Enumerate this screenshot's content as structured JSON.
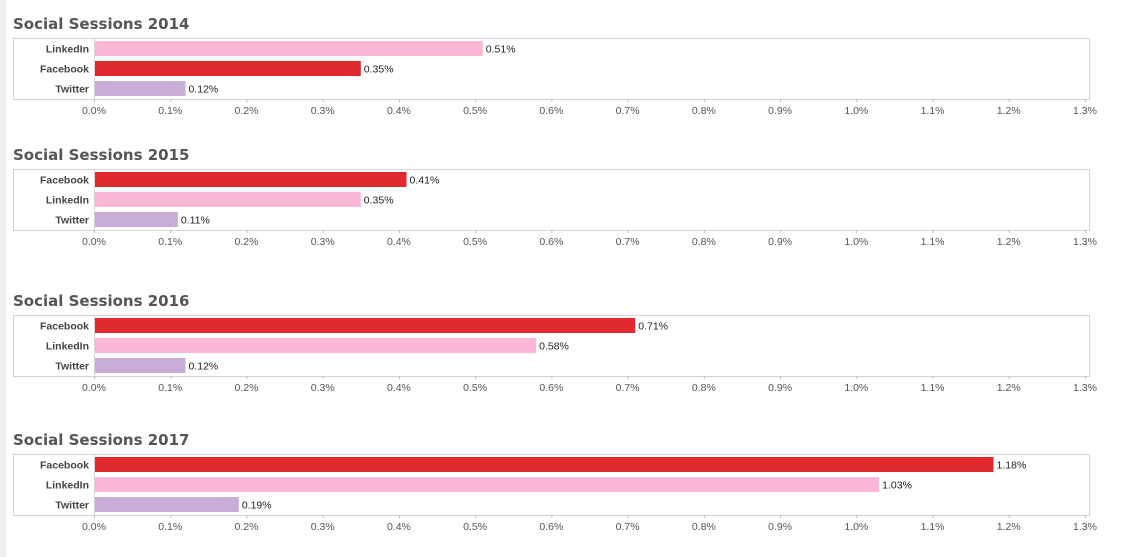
{
  "colors": {
    "Facebook": "#e02a2e",
    "LinkedIn": "#fbb8d6",
    "Twitter": "#c8aed6"
  },
  "chart_data": [
    {
      "type": "bar",
      "orientation": "horizontal",
      "title": "Social Sessions 2014",
      "categories": [
        "LinkedIn",
        "Facebook",
        "Twitter"
      ],
      "values": [
        0.51,
        0.35,
        0.12
      ],
      "value_labels": [
        "0.51%",
        "0.35%",
        "0.12%"
      ],
      "xlim": [
        0,
        1.3
      ],
      "xticks": [
        "0.0%",
        "0.1%",
        "0.2%",
        "0.3%",
        "0.4%",
        "0.5%",
        "0.6%",
        "0.7%",
        "0.8%",
        "0.9%",
        "1.0%",
        "1.1%",
        "1.2%",
        "1.3%"
      ],
      "grid": false
    },
    {
      "type": "bar",
      "orientation": "horizontal",
      "title": "Social Sessions 2015",
      "categories": [
        "Facebook",
        "LinkedIn",
        "Twitter"
      ],
      "values": [
        0.41,
        0.35,
        0.11
      ],
      "value_labels": [
        "0.41%",
        "0.35%",
        "0.11%"
      ],
      "xlim": [
        0,
        1.3
      ],
      "xticks": [
        "0.0%",
        "0.1%",
        "0.2%",
        "0.3%",
        "0.4%",
        "0.5%",
        "0.6%",
        "0.7%",
        "0.8%",
        "0.9%",
        "1.0%",
        "1.1%",
        "1.2%",
        "1.3%"
      ],
      "grid": false
    },
    {
      "type": "bar",
      "orientation": "horizontal",
      "title": "Social Sessions 2016",
      "categories": [
        "Facebook",
        "LinkedIn",
        "Twitter"
      ],
      "values": [
        0.71,
        0.58,
        0.12
      ],
      "value_labels": [
        "0.71%",
        "0.58%",
        "0.12%"
      ],
      "xlim": [
        0,
        1.3
      ],
      "xticks": [
        "0.0%",
        "0.1%",
        "0.2%",
        "0.3%",
        "0.4%",
        "0.5%",
        "0.6%",
        "0.7%",
        "0.8%",
        "0.9%",
        "1.0%",
        "1.1%",
        "1.2%",
        "1.3%"
      ],
      "grid": false
    },
    {
      "type": "bar",
      "orientation": "horizontal",
      "title": "Social Sessions 2017",
      "categories": [
        "Facebook",
        "LinkedIn",
        "Twitter"
      ],
      "values": [
        1.18,
        1.03,
        0.19
      ],
      "value_labels": [
        "1.18%",
        "1.03%",
        "0.19%"
      ],
      "xlim": [
        0,
        1.3
      ],
      "xticks": [
        "0.0%",
        "0.1%",
        "0.2%",
        "0.3%",
        "0.4%",
        "0.5%",
        "0.6%",
        "0.7%",
        "0.8%",
        "0.9%",
        "1.0%",
        "1.1%",
        "1.2%",
        "1.3%"
      ],
      "grid": false
    }
  ]
}
